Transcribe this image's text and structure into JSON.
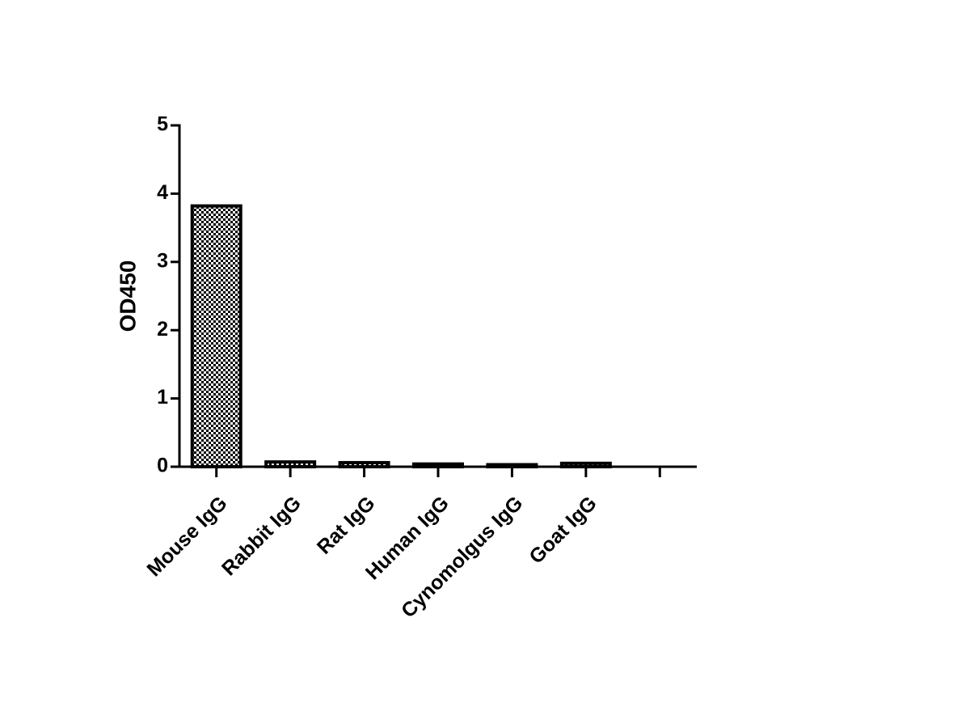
{
  "chart_data": {
    "type": "bar",
    "y_label": "OD450",
    "categories": [
      "Mouse IgG",
      "Rabbit IgG",
      "Rat IgG",
      "Human IgG",
      "Cynomolgus IgG",
      "Goat IgG",
      null
    ],
    "values": [
      3.82,
      0.07,
      0.06,
      0.04,
      0.03,
      0.05,
      null
    ],
    "color": "#000000",
    "ylim": [
      0,
      5
    ],
    "yticks": [
      0,
      1,
      2,
      3,
      4,
      5
    ],
    "grid": false
  }
}
